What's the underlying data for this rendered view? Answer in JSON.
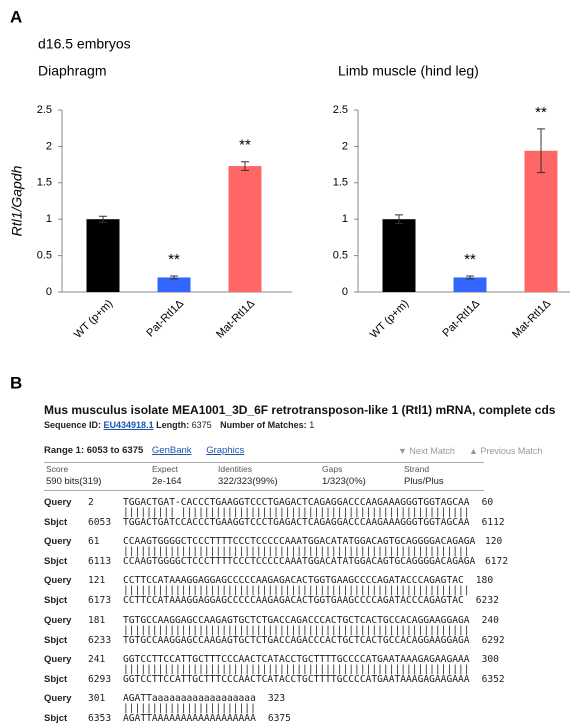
{
  "figure": {
    "panel_a_label": "A",
    "panel_a_subtitle": "d16.5 embryos",
    "panel_b_label": "B"
  },
  "chart_data": [
    {
      "type": "bar",
      "title": "Diaphragm",
      "y_label": "Rtl1/Gapdh",
      "categories": [
        "WT (p+m)",
        "Pat-Rtl1Δ",
        "Mat-Rtl1Δ"
      ],
      "values": [
        1.0,
        0.2,
        1.73
      ],
      "errors": [
        0.04,
        0.02,
        0.06
      ],
      "significance": [
        null,
        "**",
        "**"
      ],
      "colors": [
        "#000000",
        "#3366ff",
        "#ff6666"
      ],
      "ylim": [
        0,
        2.5
      ],
      "yticks": [
        0,
        0.5,
        1,
        1.5,
        2,
        2.5
      ],
      "grid": false
    },
    {
      "type": "bar",
      "title": "Limb muscle (hind leg)",
      "categories": [
        "WT (p+m)",
        "Pat-Rtl1Δ",
        "Mat-Rtl1Δ"
      ],
      "values": [
        1.0,
        0.2,
        1.94
      ],
      "errors": [
        0.06,
        0.02,
        0.3
      ],
      "significance": [
        null,
        "**",
        "**"
      ],
      "colors": [
        "#000000",
        "#3366ff",
        "#ff6666"
      ],
      "ylim": [
        0,
        2.5
      ],
      "yticks": [
        0,
        0.5,
        1,
        1.5,
        2,
        2.5
      ],
      "grid": false
    }
  ],
  "blast": {
    "title": "Mus musculus isolate MEA1001_3D_6F retrotransposon-like 1 (Rtl1) mRNA, complete cds",
    "sequence_id_label": "Sequence ID:",
    "sequence_id": "EU434918.1",
    "length_label": "Length:",
    "length": 6375,
    "matches_label": "Number of Matches:",
    "matches": 1,
    "range": "Range 1: 6053 to 6375",
    "links": [
      "GenBank",
      "Graphics"
    ],
    "next_match": "▼ Next Match",
    "previous_match": "▲ Previous Match",
    "stat_headers": [
      "Score",
      "Expect",
      "Identities",
      "Gaps",
      "Strand"
    ],
    "stat_values": [
      "590 bits(319)",
      "2e-164",
      "322/323(99%)",
      "1/323(0%)",
      "Plus/Plus"
    ],
    "query_label": "Query",
    "sbjct_label": "Sbjct",
    "blocks": [
      {
        "query": [
          2,
          "TGGACTGAT-CACCCTGAAGGTCCCTGAGACTCAGAGGACCCAAGAAAGGGTGGTAGCAA",
          60
        ],
        "match": "||||||||| ||||||||||||||||||||||||||||||||||||||||||||||||||",
        "sbjct": [
          6053,
          "TGGACTGATCCACCCTGAAGGTCCCTGAGACTCAGAGGACCCAAGAAAGGGTGGTAGCAA",
          6112
        ]
      },
      {
        "query": [
          61,
          "CCAAGTGGGGCTCCCTTTTCCCTCCCCCAAATGGACATATGGACAGTGCAGGGGACAGAGA",
          120
        ],
        "match": "||||||||||||||||||||||||||||||||||||||||||||||||||||||||||||",
        "sbjct": [
          6113,
          "CCAAGTGGGGCTCCCTTTTCCCTCCCCCAAATGGACATATGGACAGTGCAGGGGACAGAGA",
          6172
        ]
      },
      {
        "query": [
          121,
          "CCTTCCATAAAGGAGGAGCCCCCAAGAGACACTGGTGAAGCCCCAGATACCCAGAGTAC",
          180
        ],
        "match": "||||||||||||||||||||||||||||||||||||||||||||||||||||||||||||",
        "sbjct": [
          6173,
          "CCTTCCATAAAGGAGGAGCCCCCAAGAGACACTGGTGAAGCCCCAGATACCCAGAGTAC",
          6232
        ]
      },
      {
        "query": [
          181,
          "TGTGCCAAGGAGCCAAGAGTGCTCTGACCAGACCCACTGCTCACTGCCACAGGAAGGAGA",
          240
        ],
        "match": "||||||||||||||||||||||||||||||||||||||||||||||||||||||||||||",
        "sbjct": [
          6233,
          "TGTGCCAAGGAGCCAAGAGTGCTCTGACCAGACCCACTGCTCACTGCCACAGGAAGGAGA",
          6292
        ]
      },
      {
        "query": [
          241,
          "GGTCCTTCCATTGCTTTCCCAACTCATACCTGCTTTTGCCCCATGAATAAAGAGAAGAAA",
          300
        ],
        "match": "||||||||||||||||||||||||||||||||||||||||||||||||||||||||||||",
        "sbjct": [
          6293,
          "GGTCCTTCCATTGCTTTCCCAACTCATACCTGCTTTTGCCCCATGAATAAAGAGAAGAAA",
          6352
        ]
      },
      {
        "query": [
          301,
          "AGATTaaaaaaaaaaaaaaaaaa",
          323
        ],
        "match": "|||||||||||||||||||||||",
        "sbjct": [
          6353,
          "AGATTAAAAAAAAAAAAAAAAAA",
          6375
        ]
      }
    ]
  }
}
